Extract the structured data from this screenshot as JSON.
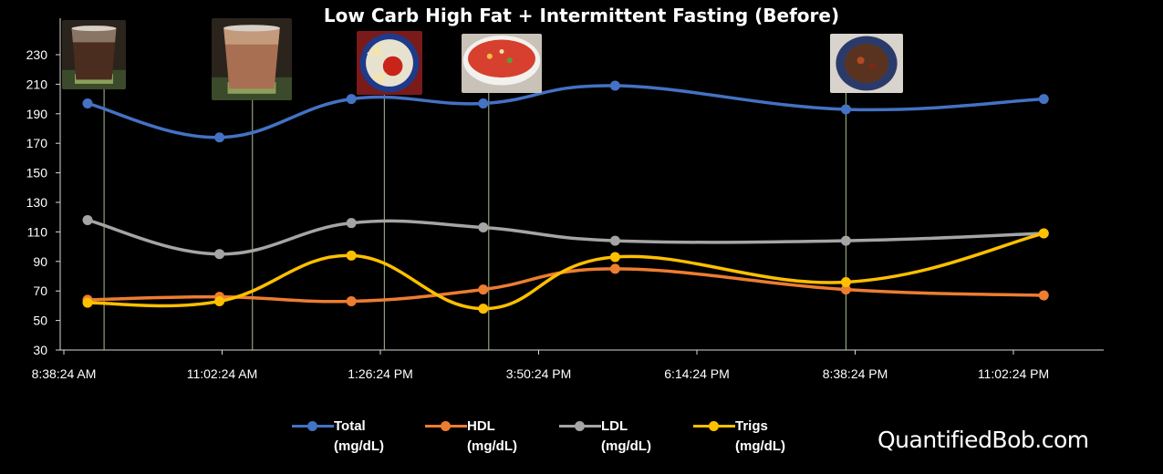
{
  "chart_data": {
    "type": "line",
    "title": "Low Carb High Fat + Intermittent Fasting (Before)",
    "x_tick_labels": [
      "8:38:24 AM",
      "11:02:24 AM",
      "1:26:24 PM",
      "3:50:24 PM",
      "6:14:24 PM",
      "8:38:24 PM",
      "11:02:24 PM"
    ],
    "x_times": [
      "9:00 AM",
      "11:00 AM",
      "1:00 PM",
      "3:00 PM",
      "5:00 PM",
      "8:30 PM",
      "11:30 PM"
    ],
    "ylim": [
      30,
      230
    ],
    "yticks": [
      30,
      50,
      70,
      90,
      110,
      130,
      150,
      170,
      190,
      210,
      230
    ],
    "series": [
      {
        "name": "Total",
        "unit": "(mg/dL)",
        "color": "#4472C4",
        "values": [
          197,
          174,
          200,
          197,
          209,
          193,
          200
        ]
      },
      {
        "name": "HDL",
        "unit": "(mg/dL)",
        "color": "#ED7D31",
        "values": [
          64,
          66,
          63,
          71,
          85,
          71,
          67
        ]
      },
      {
        "name": "LDL",
        "unit": "(mg/dL)",
        "color": "#A5A5A5",
        "values": [
          118,
          95,
          116,
          113,
          104,
          104,
          109
        ]
      },
      {
        "name": "Trigs",
        "unit": "(mg/dL)",
        "color": "#FFC000",
        "values": [
          62,
          63,
          94,
          58,
          93,
          76,
          109
        ]
      }
    ],
    "event_times": [
      "9:15 AM",
      "11:30 AM",
      "1:30 PM",
      "3:05 PM",
      "8:30 PM"
    ],
    "event_icons": [
      "coffee-glass-photo",
      "coffee-glass-photo",
      "chips-salsa-photo",
      "soup-bowl-photo",
      "stew-plate-photo"
    ],
    "legend_position": "bottom",
    "grid": false
  },
  "watermark": "QuantifiedBob.com"
}
